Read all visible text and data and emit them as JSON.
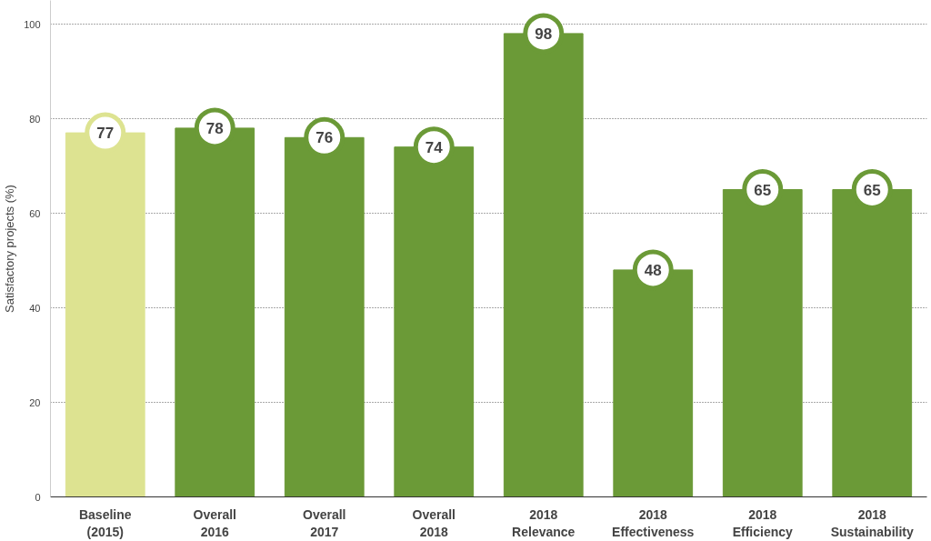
{
  "chart_data": {
    "type": "bar",
    "ylabel": "Satisfactory projects (%)",
    "categories": [
      "Baseline\n(2015)",
      "Overall\n2016",
      "Overall\n2017",
      "Overall\n2018",
      "2018\nRelevance",
      "2018\nEffectiveness",
      "2018\nEfficiency",
      "2018\nSustainability"
    ],
    "values": [
      77,
      78,
      76,
      74,
      98,
      48,
      65,
      65
    ],
    "colors": [
      "#dde391",
      "#6b9a37",
      "#6b9a37",
      "#6b9a37",
      "#6b9a37",
      "#6b9a37",
      "#6b9a37",
      "#6b9a37"
    ],
    "ylim": [
      0,
      105
    ],
    "yticks": [
      0,
      20,
      40,
      60,
      80,
      100
    ],
    "grid": "y",
    "data_labels": true
  }
}
